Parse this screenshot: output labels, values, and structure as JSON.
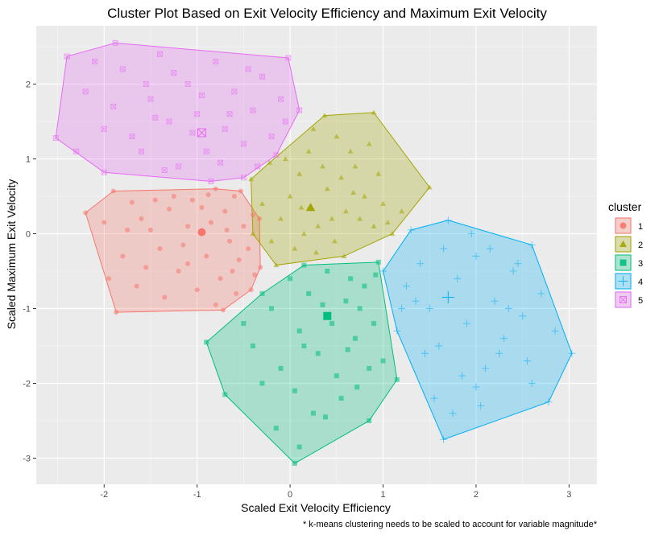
{
  "chart_data": {
    "type": "scatter",
    "title": "Cluster Plot Based on Exit Velocity Efficiency and Maximum Exit Velocity",
    "xlabel": "Scaled Exit Velocity Efficiency",
    "ylabel": "Scaled Maximum Exit Velocity",
    "caption": "* k-means clustering needs to be scaled to account for variable magnitude*",
    "xlim": [
      -2.73,
      3.3
    ],
    "ylim": [
      -3.35,
      2.78
    ],
    "x_ticks": [
      -2,
      -1,
      0,
      1,
      2,
      3
    ],
    "y_ticks": [
      -3,
      -2,
      -1,
      0,
      1,
      2
    ],
    "grid": true,
    "legend": {
      "title": "cluster",
      "position": "right"
    },
    "series": [
      {
        "name": "1",
        "color": "#F8766D",
        "shape": "circle",
        "centroid": [
          -0.95,
          0.02
        ],
        "hull": [
          [
            -2.2,
            0.28
          ],
          [
            -1.9,
            0.57
          ],
          [
            -0.8,
            0.6
          ],
          [
            -0.53,
            0.57
          ],
          [
            -0.33,
            0.2
          ],
          [
            -0.32,
            -0.45
          ],
          [
            -0.42,
            -0.75
          ],
          [
            -0.72,
            -1.02
          ],
          [
            -1.87,
            -1.05
          ]
        ],
        "points": [
          [
            -2.2,
            0.28
          ],
          [
            -1.9,
            0.57
          ],
          [
            -0.8,
            0.6
          ],
          [
            -0.53,
            0.57
          ],
          [
            -0.33,
            0.2
          ],
          [
            -0.32,
            -0.45
          ],
          [
            -0.42,
            -0.75
          ],
          [
            -0.72,
            -1.02
          ],
          [
            -1.87,
            -1.05
          ],
          [
            -1.7,
            0.42
          ],
          [
            -1.6,
            0.2
          ],
          [
            -1.5,
            0.05
          ],
          [
            -1.4,
            -0.2
          ],
          [
            -1.3,
            0.33
          ],
          [
            -1.2,
            -0.5
          ],
          [
            -1.1,
            0.1
          ],
          [
            -1.05,
            0.45
          ],
          [
            -0.9,
            -0.3
          ],
          [
            -0.85,
            0.15
          ],
          [
            -0.75,
            -0.6
          ],
          [
            -0.7,
            0.3
          ],
          [
            -0.65,
            -0.1
          ],
          [
            -0.6,
            0.5
          ],
          [
            -0.55,
            -0.35
          ],
          [
            -0.5,
            0.1
          ],
          [
            -0.45,
            -0.2
          ],
          [
            -0.4,
            0.25
          ],
          [
            -0.38,
            -0.55
          ],
          [
            -1.8,
            -0.3
          ],
          [
            -1.75,
            0.05
          ],
          [
            -1.65,
            -0.7
          ],
          [
            -1.55,
            -0.45
          ],
          [
            -1.35,
            -0.85
          ],
          [
            -1.25,
            0.5
          ],
          [
            -1.15,
            -0.15
          ],
          [
            -1.0,
            -0.75
          ],
          [
            -0.95,
            0.35
          ],
          [
            -0.8,
            -0.95
          ],
          [
            -0.68,
            0.05
          ],
          [
            -0.58,
            -0.8
          ],
          [
            -1.95,
            -0.6
          ],
          [
            -1.45,
            0.45
          ],
          [
            -1.1,
            -0.4
          ],
          [
            -0.88,
            0.52
          ],
          [
            -0.62,
            -0.5
          ],
          [
            -2.0,
            0.15
          ]
        ]
      },
      {
        "name": "2",
        "color": "#A3A500",
        "shape": "triangle",
        "centroid": [
          0.22,
          0.35
        ],
        "hull": [
          [
            -0.42,
            0.73
          ],
          [
            -0.22,
            0.95
          ],
          [
            0.37,
            1.58
          ],
          [
            0.9,
            1.62
          ],
          [
            1.5,
            0.62
          ],
          [
            1.1,
            0.0
          ],
          [
            0.58,
            -0.3
          ],
          [
            -0.15,
            -0.42
          ],
          [
            -0.4,
            0.0
          ]
        ],
        "points": [
          [
            -0.42,
            0.73
          ],
          [
            -0.22,
            0.95
          ],
          [
            0.37,
            1.58
          ],
          [
            0.9,
            1.62
          ],
          [
            1.5,
            0.62
          ],
          [
            1.1,
            0.0
          ],
          [
            0.58,
            -0.3
          ],
          [
            -0.15,
            -0.42
          ],
          [
            -0.4,
            0.0
          ],
          [
            -0.1,
            0.2
          ],
          [
            0.0,
            0.5
          ],
          [
            0.1,
            0.8
          ],
          [
            0.2,
            1.1
          ],
          [
            0.3,
            0.1
          ],
          [
            0.4,
            0.6
          ],
          [
            0.5,
            1.3
          ],
          [
            0.6,
            0.3
          ],
          [
            0.7,
            0.9
          ],
          [
            0.8,
            0.5
          ],
          [
            0.9,
            0.1
          ],
          [
            1.0,
            0.4
          ],
          [
            1.2,
            0.3
          ],
          [
            -0.3,
            0.4
          ],
          [
            -0.2,
            -0.1
          ],
          [
            0.05,
            -0.2
          ],
          [
            0.15,
            0.0
          ],
          [
            0.25,
            1.4
          ],
          [
            0.35,
            0.9
          ],
          [
            0.45,
            0.2
          ],
          [
            0.55,
            0.75
          ],
          [
            0.65,
            1.1
          ],
          [
            0.75,
            0.2
          ],
          [
            0.85,
            1.2
          ],
          [
            0.95,
            0.8
          ],
          [
            -0.05,
            1.0
          ],
          [
            0.12,
            0.35
          ],
          [
            0.28,
            -0.25
          ],
          [
            0.48,
            -0.1
          ],
          [
            0.68,
            0.55
          ],
          [
            1.05,
            0.15
          ]
        ]
      },
      {
        "name": "3",
        "color": "#00BF7D",
        "shape": "square",
        "centroid": [
          0.4,
          -1.1
        ],
        "hull": [
          [
            -0.9,
            -1.45
          ],
          [
            -0.3,
            -0.8
          ],
          [
            0.15,
            -0.42
          ],
          [
            0.95,
            -0.38
          ],
          [
            1.15,
            -1.95
          ],
          [
            0.85,
            -2.5
          ],
          [
            0.05,
            -3.07
          ],
          [
            -0.7,
            -2.15
          ]
        ],
        "points": [
          [
            -0.9,
            -1.45
          ],
          [
            -0.3,
            -0.8
          ],
          [
            0.15,
            -0.42
          ],
          [
            0.95,
            -0.38
          ],
          [
            1.15,
            -1.95
          ],
          [
            0.85,
            -2.5
          ],
          [
            0.05,
            -3.07
          ],
          [
            -0.7,
            -2.15
          ],
          [
            -0.2,
            -1.0
          ],
          [
            0.0,
            -0.6
          ],
          [
            0.1,
            -1.3
          ],
          [
            0.2,
            -0.8
          ],
          [
            0.3,
            -1.6
          ],
          [
            0.4,
            -0.5
          ],
          [
            0.5,
            -1.9
          ],
          [
            0.6,
            -0.9
          ],
          [
            0.7,
            -1.4
          ],
          [
            0.8,
            -0.7
          ],
          [
            0.9,
            -1.2
          ],
          [
            1.0,
            -1.7
          ],
          [
            -0.4,
            -1.5
          ],
          [
            -0.1,
            -1.8
          ],
          [
            0.05,
            -2.1
          ],
          [
            0.25,
            -2.4
          ],
          [
            0.45,
            -1.2
          ],
          [
            0.55,
            -2.2
          ],
          [
            0.65,
            -0.6
          ],
          [
            0.75,
            -1.0
          ],
          [
            0.85,
            -1.8
          ],
          [
            -0.3,
            -2.0
          ],
          [
            -0.5,
            -1.2
          ],
          [
            0.15,
            -1.5
          ],
          [
            0.35,
            -0.95
          ],
          [
            0.62,
            -1.55
          ],
          [
            0.92,
            -0.55
          ],
          [
            0.38,
            -2.45
          ],
          [
            0.72,
            -2.05
          ],
          [
            -0.15,
            -2.6
          ],
          [
            0.1,
            -2.85
          ]
        ]
      },
      {
        "name": "4",
        "color": "#00B0F6",
        "shape": "plus",
        "centroid": [
          1.7,
          -0.85
        ],
        "hull": [
          [
            1.0,
            -0.5
          ],
          [
            1.3,
            0.05
          ],
          [
            1.7,
            0.18
          ],
          [
            2.6,
            -0.15
          ],
          [
            3.03,
            -1.6
          ],
          [
            2.78,
            -2.25
          ],
          [
            1.65,
            -2.75
          ],
          [
            1.15,
            -1.3
          ]
        ],
        "points": [
          [
            1.0,
            -0.5
          ],
          [
            1.3,
            0.05
          ],
          [
            1.7,
            0.18
          ],
          [
            2.6,
            -0.15
          ],
          [
            3.03,
            -1.6
          ],
          [
            2.78,
            -2.25
          ],
          [
            1.65,
            -2.75
          ],
          [
            1.15,
            -1.3
          ],
          [
            1.4,
            -0.4
          ],
          [
            1.5,
            -1.0
          ],
          [
            1.6,
            -1.5
          ],
          [
            1.8,
            -0.6
          ],
          [
            1.9,
            -1.2
          ],
          [
            2.0,
            -0.3
          ],
          [
            2.1,
            -1.8
          ],
          [
            2.2,
            -0.9
          ],
          [
            2.3,
            -1.4
          ],
          [
            2.4,
            -0.5
          ],
          [
            2.5,
            -1.1
          ],
          [
            2.6,
            -2.0
          ],
          [
            2.7,
            -0.8
          ],
          [
            1.35,
            -0.9
          ],
          [
            1.55,
            -2.2
          ],
          [
            1.75,
            -2.4
          ],
          [
            1.85,
            -1.9
          ],
          [
            2.05,
            -2.3
          ],
          [
            2.25,
            -1.6
          ],
          [
            2.45,
            -0.4
          ],
          [
            2.55,
            -1.7
          ],
          [
            2.85,
            -1.3
          ],
          [
            1.25,
            -0.7
          ],
          [
            1.45,
            -1.6
          ],
          [
            1.95,
            0.0
          ],
          [
            2.15,
            -0.2
          ],
          [
            2.35,
            -1.0
          ],
          [
            1.65,
            -0.2
          ],
          [
            2.0,
            -2.05
          ],
          [
            1.2,
            -1.0
          ]
        ]
      },
      {
        "name": "5",
        "color": "#E76BF3",
        "shape": "boxcross",
        "centroid": [
          -0.95,
          1.35
        ],
        "hull": [
          [
            -2.52,
            1.28
          ],
          [
            -2.4,
            2.37
          ],
          [
            -1.88,
            2.55
          ],
          [
            -0.02,
            2.35
          ],
          [
            0.1,
            1.65
          ],
          [
            -0.15,
            1.05
          ],
          [
            -0.5,
            0.75
          ],
          [
            -0.85,
            0.7
          ],
          [
            -2.0,
            0.82
          ]
        ],
        "points": [
          [
            -2.52,
            1.28
          ],
          [
            -2.4,
            2.37
          ],
          [
            -1.88,
            2.55
          ],
          [
            -0.02,
            2.35
          ],
          [
            0.1,
            1.65
          ],
          [
            -0.15,
            1.05
          ],
          [
            -0.5,
            0.75
          ],
          [
            -0.85,
            0.7
          ],
          [
            -2.0,
            0.82
          ],
          [
            -2.2,
            1.9
          ],
          [
            -2.0,
            1.4
          ],
          [
            -1.8,
            2.2
          ],
          [
            -1.6,
            1.1
          ],
          [
            -1.5,
            1.8
          ],
          [
            -1.4,
            2.4
          ],
          [
            -1.3,
            1.5
          ],
          [
            -1.2,
            0.9
          ],
          [
            -1.1,
            2.0
          ],
          [
            -1.0,
            1.6
          ],
          [
            -0.9,
            1.1
          ],
          [
            -0.8,
            2.3
          ],
          [
            -0.7,
            1.4
          ],
          [
            -0.6,
            1.9
          ],
          [
            -0.5,
            1.2
          ],
          [
            -0.4,
            1.65
          ],
          [
            -0.3,
            2.1
          ],
          [
            -0.2,
            1.3
          ],
          [
            -0.1,
            1.8
          ],
          [
            -2.3,
            1.1
          ],
          [
            -2.1,
            2.3
          ],
          [
            -1.9,
            1.7
          ],
          [
            -1.7,
            1.3
          ],
          [
            -1.55,
            2.0
          ],
          [
            -1.35,
            0.85
          ],
          [
            -1.25,
            2.15
          ],
          [
            -1.05,
            1.35
          ],
          [
            -0.95,
            1.85
          ],
          [
            -0.75,
            0.95
          ],
          [
            -0.65,
            1.6
          ],
          [
            -0.45,
            2.2
          ],
          [
            -0.35,
            0.9
          ],
          [
            -1.45,
            1.55
          ],
          [
            -0.05,
            1.5
          ]
        ]
      }
    ]
  }
}
